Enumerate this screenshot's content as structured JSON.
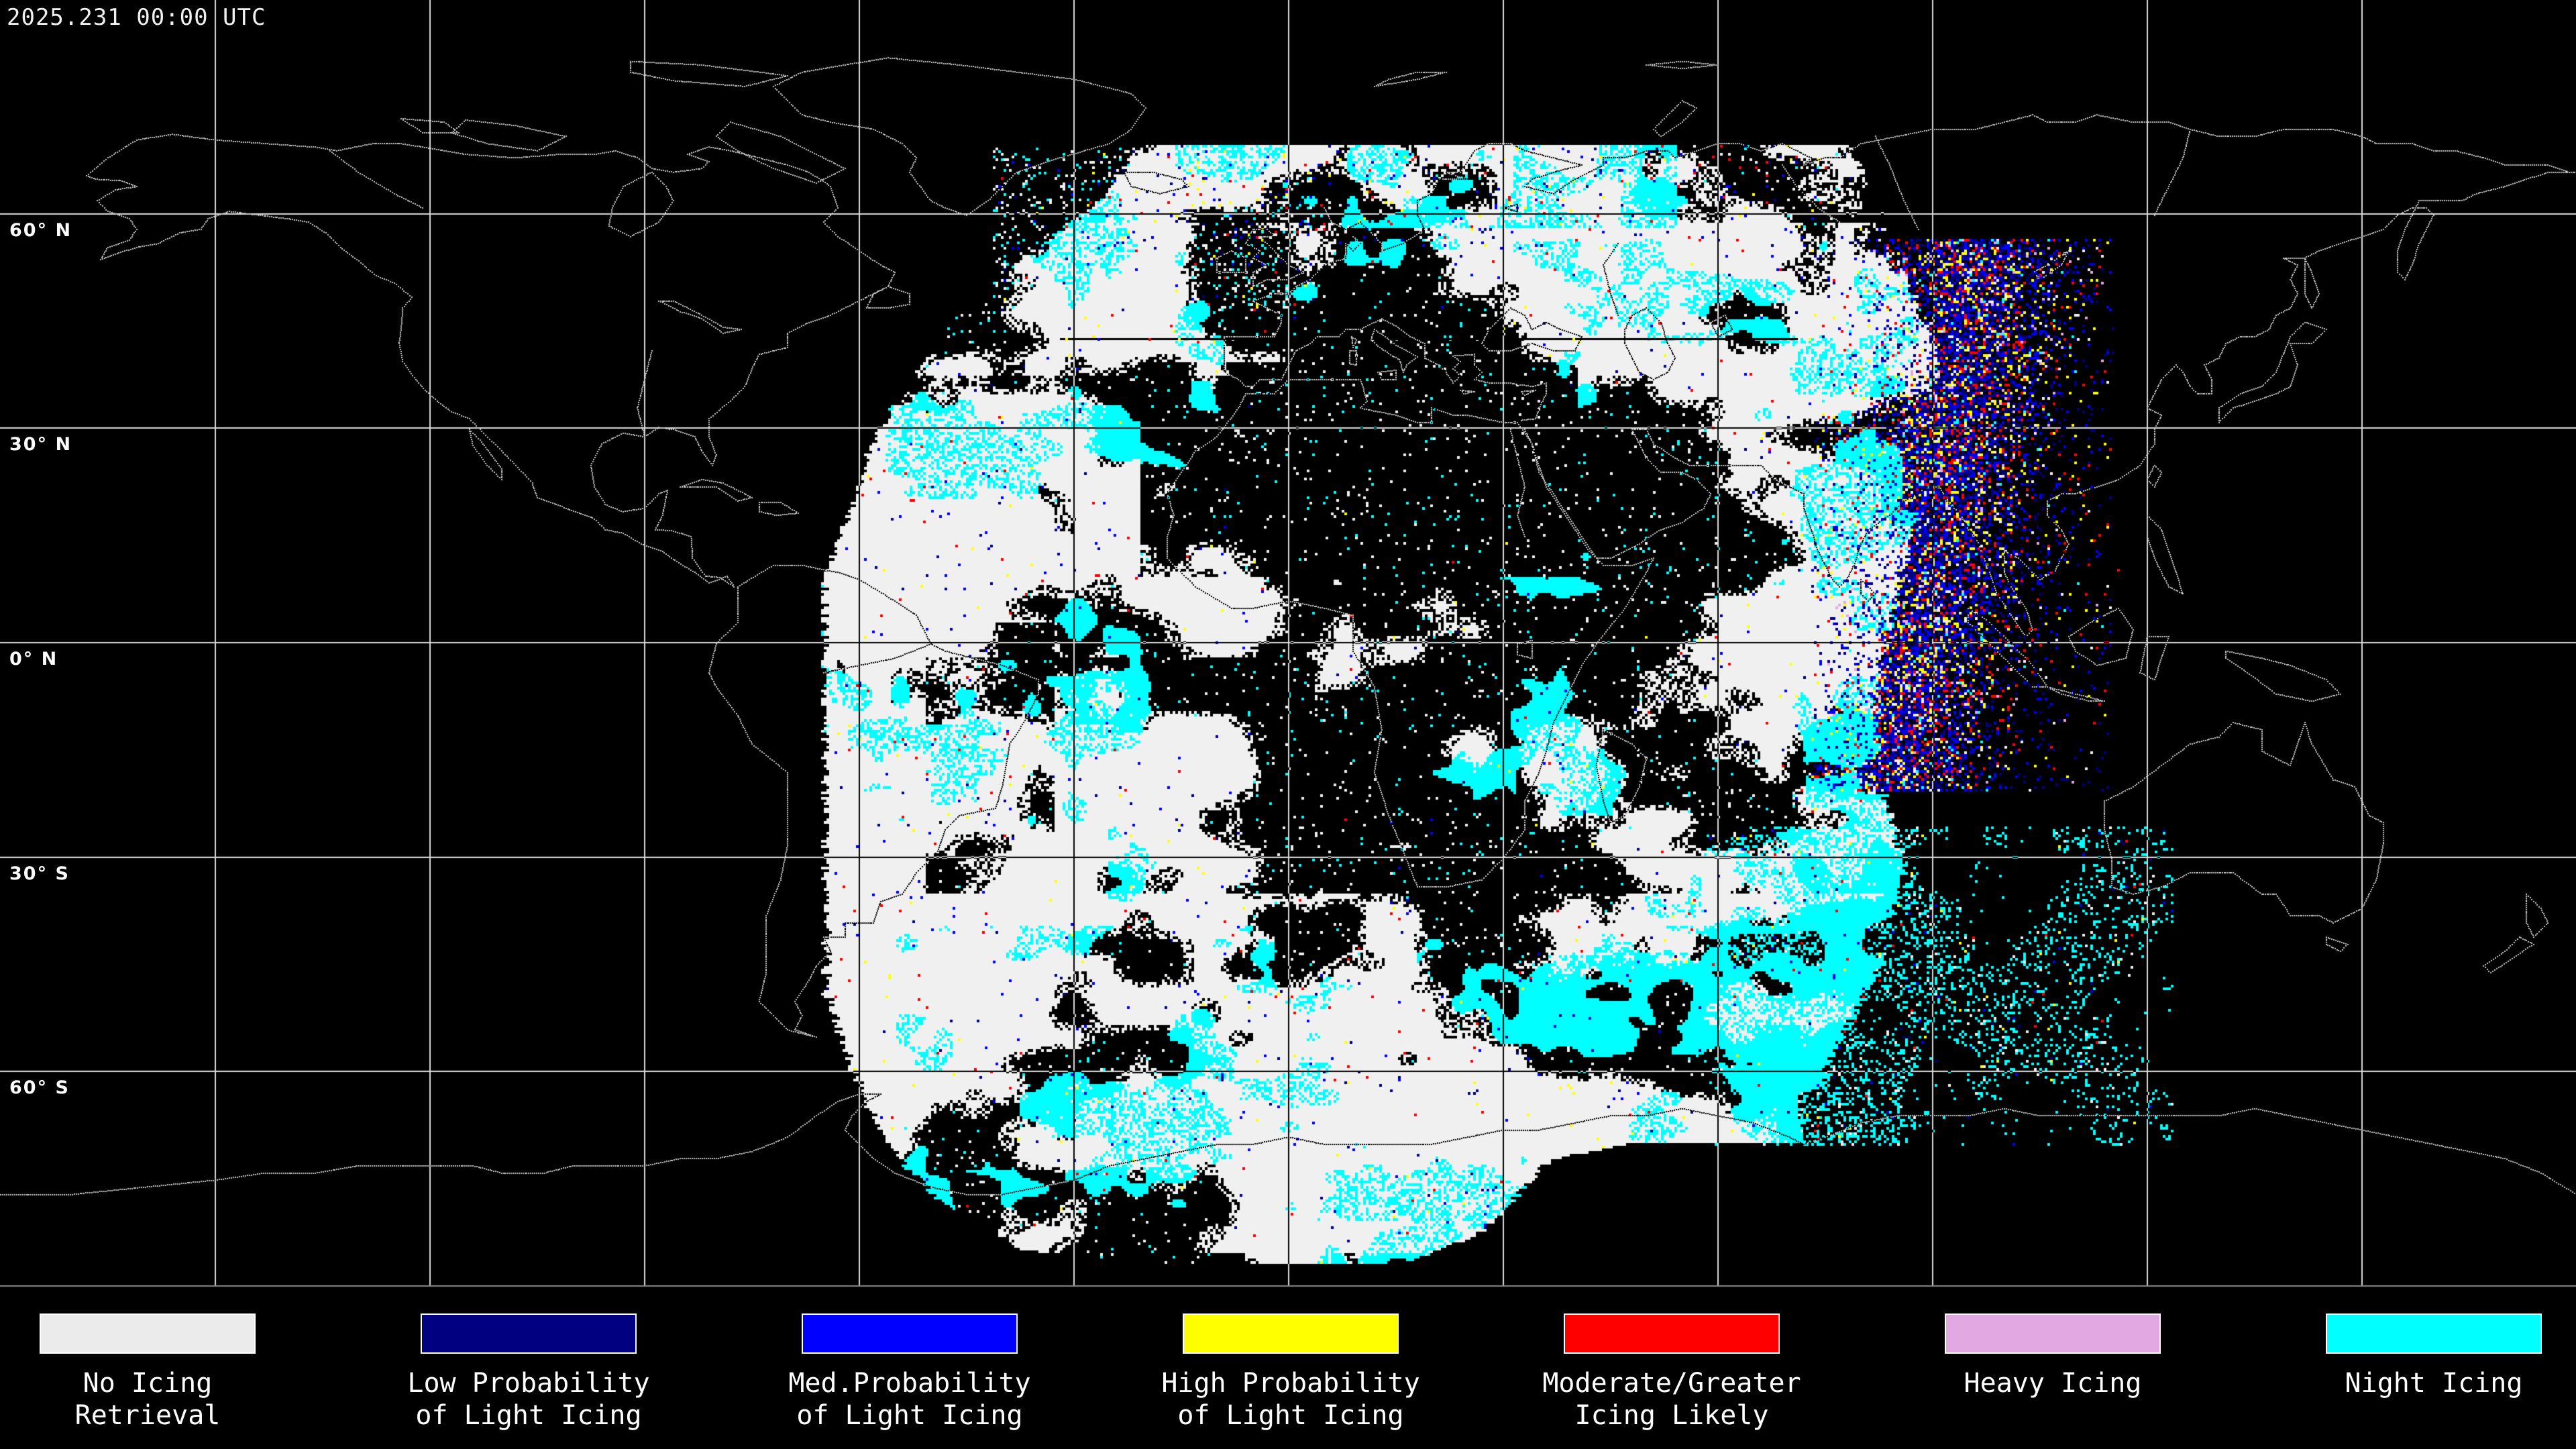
{
  "header": {
    "timestamp": "2025.231 00:00 UTC"
  },
  "map": {
    "latitude_labels": [
      {
        "text": "60° N",
        "lat": 60
      },
      {
        "text": "30° N",
        "lat": 30
      },
      {
        "text": "0° N",
        "lat": 0
      },
      {
        "text": "30° S",
        "lat": -30
      },
      {
        "text": "60° S",
        "lat": -60
      }
    ],
    "grid": {
      "lat_step_deg": 30,
      "lon_step_deg": 30
    },
    "palette": {
      "background": "#000000",
      "no_icing_retrieval": "#F0F0F0",
      "low_prob_light_icing": "#000080",
      "med_prob_light_icing": "#0000FF",
      "high_prob_light_icing": "#FFFF00",
      "moderate_greater_icing": "#FF0000",
      "heavy_icing": "#E2A8E2",
      "night_icing": "#00FFFF",
      "coastline": "#C8C8C8",
      "coastline_over_data": "#000000",
      "grid_line": "#DCDCDC",
      "grid_line_over_data": "#000000",
      "separator": "#888888"
    }
  },
  "legend": {
    "items": [
      {
        "color": "#EBEBEB",
        "label_lines": [
          "No Icing",
          "Retrieval"
        ]
      },
      {
        "color": "#000080",
        "label_lines": [
          "Low Probability",
          "of Light Icing"
        ]
      },
      {
        "color": "#0000FF",
        "label_lines": [
          "Med.Probability",
          "of Light Icing"
        ]
      },
      {
        "color": "#FFFF00",
        "label_lines": [
          "High Probability",
          "of Light Icing"
        ]
      },
      {
        "color": "#FF0000",
        "label_lines": [
          "Moderate/Greater",
          "Icing Likely"
        ]
      },
      {
        "color": "#E2A8E2",
        "label_lines": [
          "Heavy Icing"
        ]
      },
      {
        "color": "#00FFFF",
        "label_lines": [
          "Night Icing"
        ]
      }
    ]
  }
}
